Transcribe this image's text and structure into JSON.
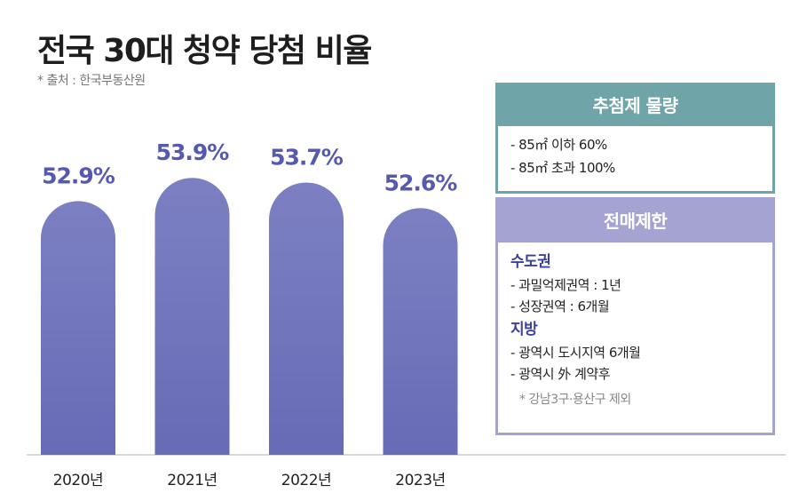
{
  "title": "전국 30대 청약 당첨 비율",
  "source": "* 출처 : 한국부동산원",
  "chart_data": {
    "type": "bar",
    "title": "전국 30대 청약 당첨 비율",
    "categories": [
      "2020년",
      "2021년",
      "2022년",
      "2023년"
    ],
    "values": [
      52.9,
      53.9,
      53.7,
      52.6
    ],
    "data_labels": [
      "52.9%",
      "53.9%",
      "53.7%",
      "52.6%"
    ],
    "unit": "%",
    "bar_shape": "rounded-top",
    "grid": false,
    "y_axis_shown": false,
    "colors": {
      "bar": "#7074bb",
      "label": "#5559b0",
      "baseline": "#cccccc"
    }
  },
  "panels": {
    "lottery": {
      "header": "추첨제 물량",
      "items": [
        "- 85㎡ 이하 60%",
        "- 85㎡ 초과 100%"
      ],
      "color": "#6fa5a8"
    },
    "resale": {
      "header": "전매제한",
      "sections": [
        {
          "title": "수도권",
          "items": [
            "- 과밀억제권역 : 1년",
            "- 성장권역 : 6개월"
          ]
        },
        {
          "title": "지방",
          "items": [
            "- 광역시 도시지역 6개월",
            "- 광역시 外 계약후"
          ]
        }
      ],
      "note": "* 강남3구·용산구 제외",
      "color": "#a4a3d2"
    }
  }
}
